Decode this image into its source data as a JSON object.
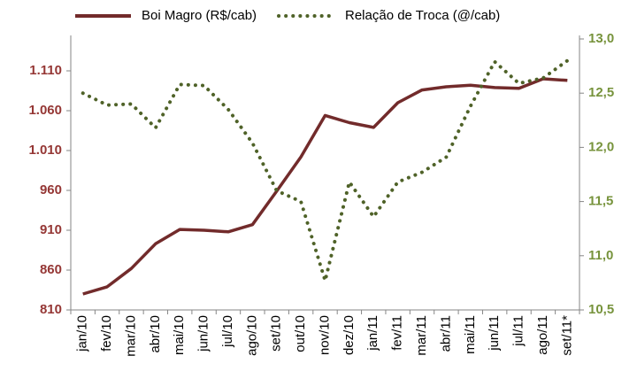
{
  "chart_data": {
    "type": "line",
    "categories": [
      "jan/10",
      "fev/10",
      "mar/10",
      "abr/10",
      "mai/10",
      "jun/10",
      "jul/10",
      "ago/10",
      "set/10",
      "out/10",
      "nov/10",
      "dez/10",
      "jan/11",
      "fev/11",
      "mar/11",
      "abr/11",
      "mai/11",
      "jun/11",
      "jul/11",
      "ago/11",
      "set/11*"
    ],
    "series": [
      {
        "name": "Boi Magro (R$/cab)",
        "color": "#722b2b",
        "axis": "y",
        "style": "solid",
        "values": [
          830,
          839,
          862,
          893,
          911,
          910,
          908,
          917,
          959,
          1002,
          1054,
          1045,
          1039,
          1070,
          1086,
          1090,
          1092,
          1089,
          1088,
          1100,
          1098
        ]
      },
      {
        "name": "Relação de Troca (@/cab)",
        "color": "#4f6228",
        "axis": "y2",
        "style": "dotted",
        "values": [
          12.5,
          12.39,
          12.4,
          12.18,
          12.58,
          12.57,
          12.35,
          12.04,
          11.6,
          11.5,
          10.77,
          11.68,
          11.36,
          11.68,
          11.77,
          11.91,
          12.38,
          12.79,
          12.59,
          12.64,
          12.8
        ]
      }
    ],
    "ylim": [
      810,
      1150
    ],
    "yticks": [
      810,
      860,
      910,
      960,
      {
        "value": 1010,
        "label": "1.010"
      },
      {
        "value": 1060,
        "label": "1.060"
      },
      {
        "value": 1110,
        "label": "1.110"
      }
    ],
    "y2lim": [
      10.5,
      13.0
    ],
    "y2ticks": [
      {
        "value": 10.5,
        "label": "10,5"
      },
      {
        "value": 11.0,
        "label": "11,0"
      },
      {
        "value": 11.5,
        "label": "11,5"
      },
      {
        "value": 12.0,
        "label": "12,0"
      },
      {
        "value": 12.5,
        "label": "12,5"
      },
      {
        "value": 13.0,
        "label": "13,0"
      }
    ],
    "ytick_color": "#953735",
    "y2tick_color": "#77933c",
    "legend": "top",
    "grid": false
  }
}
